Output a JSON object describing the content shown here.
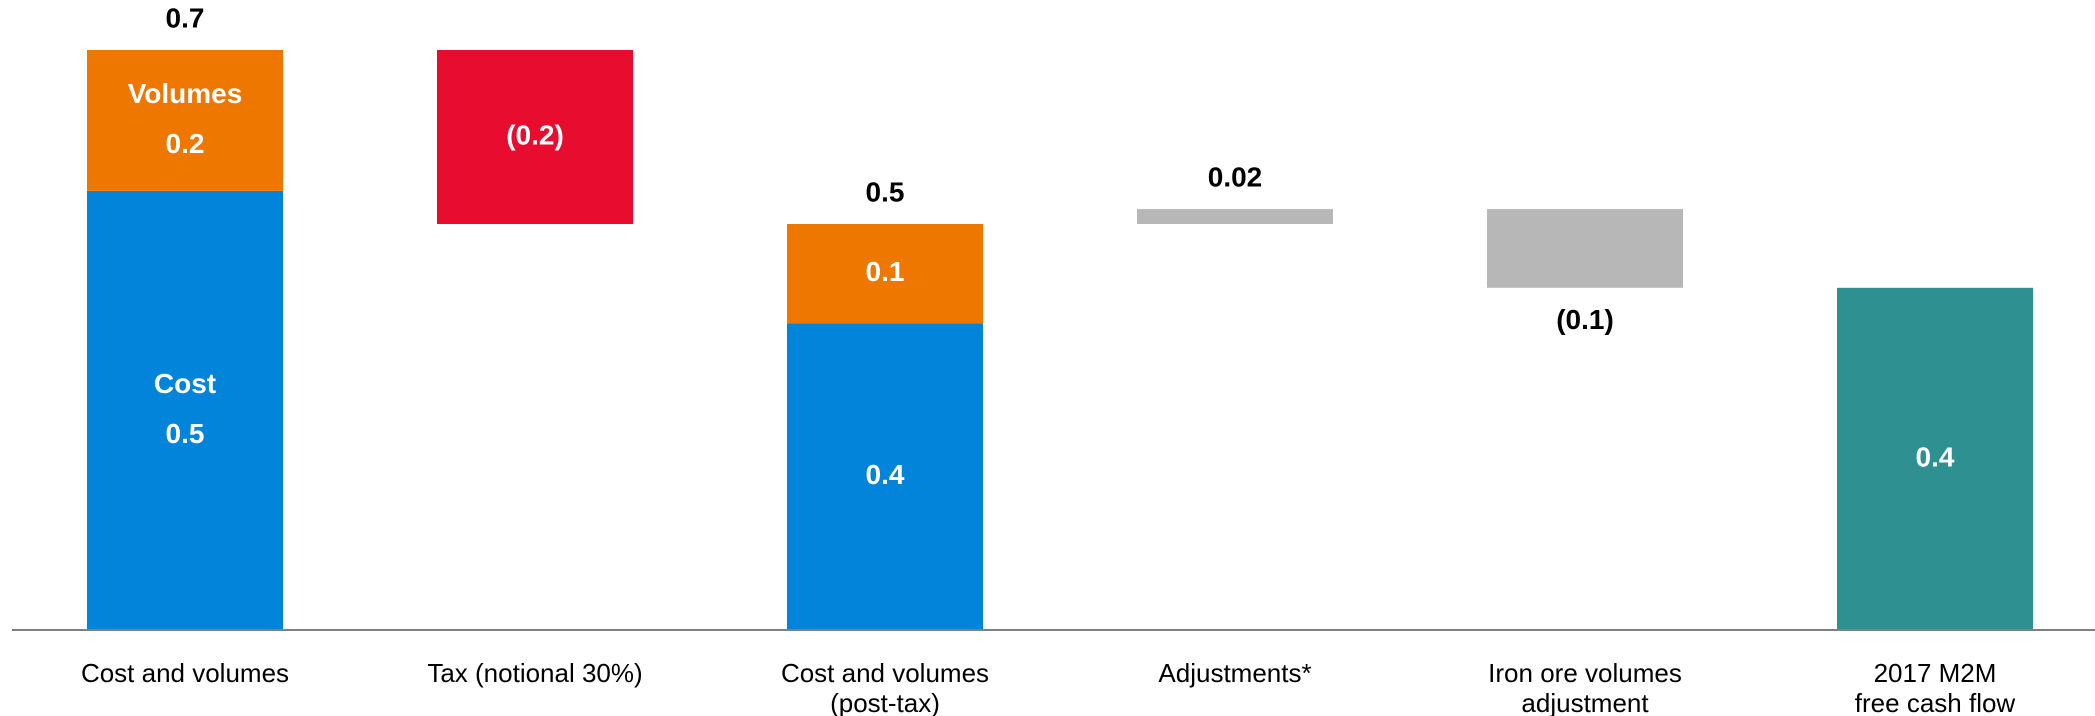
{
  "chart_data": {
    "type": "bar",
    "subtype": "waterfall",
    "title": "",
    "xlabel": "",
    "ylabel": "",
    "ylim": [
      0,
      0.7
    ],
    "grid": false,
    "legend": "none",
    "colors": {
      "cost": "#0284DB",
      "volumes": "#EE7700",
      "tax": "#E80C2F",
      "adjustment": "#B7B7B7",
      "total": "#2E9090",
      "axis": "#808080"
    },
    "categories": [
      {
        "lines": [
          "Cost and volumes"
        ]
      },
      {
        "lines": [
          "Tax (notional 30%)"
        ]
      },
      {
        "lines": [
          "Cost and volumes",
          "(post-tax)"
        ]
      },
      {
        "lines": [
          "Adjustments*"
        ]
      },
      {
        "lines": [
          "Iron ore volumes",
          "adjustment"
        ]
      },
      {
        "lines": [
          "2017 M2M",
          "free cash flow"
        ]
      }
    ],
    "bars": [
      {
        "category": 0,
        "base": 0,
        "segments": [
          {
            "value": 0.53,
            "color_key": "cost",
            "labels": [
              "Cost",
              "0.5"
            ]
          },
          {
            "value": 0.17,
            "color_key": "volumes",
            "labels": [
              "Volumes",
              "0.2"
            ]
          }
        ],
        "total_label": "0.7"
      },
      {
        "category": 1,
        "base": 0.49,
        "segments": [
          {
            "value": 0.21,
            "color_key": "tax",
            "labels": [
              "(0.2)"
            ]
          }
        ]
      },
      {
        "category": 2,
        "base": 0,
        "segments": [
          {
            "value": 0.37,
            "color_key": "cost",
            "labels": [
              "0.4"
            ]
          },
          {
            "value": 0.12,
            "color_key": "volumes",
            "labels": [
              "0.1"
            ]
          }
        ],
        "total_label": "0.5"
      },
      {
        "category": 3,
        "base": 0.49,
        "segments": [
          {
            "value": 0.018,
            "color_key": "adjustment",
            "labels": []
          }
        ],
        "total_label": "0.02"
      },
      {
        "category": 4,
        "base": 0.413,
        "segments": [
          {
            "value": 0.095,
            "color_key": "adjustment",
            "labels": []
          }
        ],
        "bottom_label": "(0.1)"
      },
      {
        "category": 5,
        "base": 0,
        "segments": [
          {
            "value": 0.413,
            "color_key": "total",
            "labels": [
              "0.4"
            ]
          }
        ]
      }
    ]
  }
}
